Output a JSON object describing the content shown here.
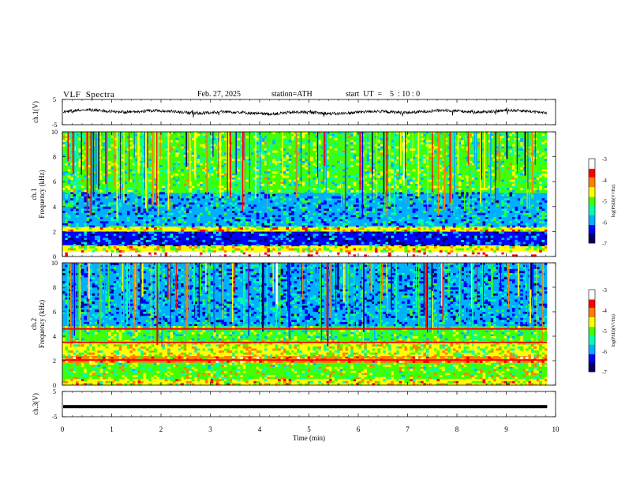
{
  "header": {
    "title": "VLF  Spectra",
    "date": "Feb. 27, 2025",
    "station": "station=ATH",
    "start": "start  UT  =    5  : 10 : 0"
  },
  "colors": {
    "background": "#ffffff",
    "waveform": "#000000",
    "colormap": [
      "#000066",
      "#0000ff",
      "#00b0ff",
      "#00ffb0",
      "#40ff00",
      "#ffff00",
      "#ff8000",
      "#ff0000",
      "#ffffff"
    ]
  },
  "chart_data": [
    {
      "type": "line",
      "panel": "ch1-waveform",
      "ylabel": "ch.1(V)",
      "yticks": [
        "5",
        "-5"
      ],
      "ylim": [
        -5,
        5
      ],
      "xlim": [
        0,
        10
      ],
      "x_data_end": 9.83,
      "description_values": {
        "mean_level": 0.0,
        "noise_amplitude": 0.6
      }
    },
    {
      "type": "heatmap",
      "panel": "ch1-spectrogram",
      "ylabel": [
        "ch.1",
        "Frequency  (kHz)"
      ],
      "yticks": [
        "0",
        "2",
        "4",
        "6",
        "8",
        "10"
      ],
      "ylim": [
        0,
        10
      ],
      "xlim": [
        0,
        10
      ],
      "x_data_end": 9.83,
      "colorbar": {
        "label": "log(PSD)(V²/Hz)",
        "ticks": [
          "-3",
          "-4",
          "-5",
          "-6",
          "-7"
        ],
        "range": [
          -7,
          -3
        ]
      },
      "bands_khz": [
        {
          "from": 0.0,
          "to": 0.4,
          "level": -3.0
        },
        {
          "from": 0.4,
          "to": 0.9,
          "level": -4.6
        },
        {
          "from": 0.9,
          "to": 2.0,
          "level": -6.3
        },
        {
          "from": 2.0,
          "to": 2.4,
          "level": -4.4
        },
        {
          "from": 2.4,
          "to": 5.1,
          "level": -5.8
        },
        {
          "from": 5.1,
          "to": 10.0,
          "level": -5.1
        }
      ]
    },
    {
      "type": "heatmap",
      "panel": "ch2-spectrogram",
      "ylabel": [
        "ch.2",
        "Frequency  (kHz)"
      ],
      "yticks": [
        "0",
        "2",
        "4",
        "6",
        "8",
        "10"
      ],
      "ylim": [
        0,
        10
      ],
      "xlim": [
        0,
        10
      ],
      "x_data_end": 9.83,
      "colorbar": {
        "label": "log(PSD)(V²/Hz)",
        "ticks": [
          "-3",
          "-4",
          "-5",
          "-6",
          "-7"
        ],
        "range": [
          -7,
          -3
        ]
      },
      "bands_khz": [
        {
          "from": 0.0,
          "to": 0.5,
          "level": -4.5
        },
        {
          "from": 0.5,
          "to": 1.8,
          "level": -4.9
        },
        {
          "from": 1.8,
          "to": 2.4,
          "level": -4.1
        },
        {
          "from": 2.4,
          "to": 3.6,
          "level": -4.7
        },
        {
          "from": 3.6,
          "to": 4.8,
          "level": -5.2
        },
        {
          "from": 4.8,
          "to": 10.0,
          "level": -5.9
        }
      ],
      "lines_khz": [
        2.05,
        3.5,
        4.6
      ]
    },
    {
      "type": "line",
      "panel": "ch3-waveform",
      "ylabel": "ch.3(V)",
      "yticks": [
        "5",
        "-5"
      ],
      "ylim": [
        -5,
        5
      ],
      "xlim": [
        0,
        10
      ],
      "x_data_end": 9.83,
      "flat_value": -1.0,
      "xlabel": "Time  (min)",
      "xticks": [
        "0",
        "1",
        "2",
        "3",
        "4",
        "5",
        "6",
        "7",
        "8",
        "9",
        "10"
      ]
    }
  ]
}
